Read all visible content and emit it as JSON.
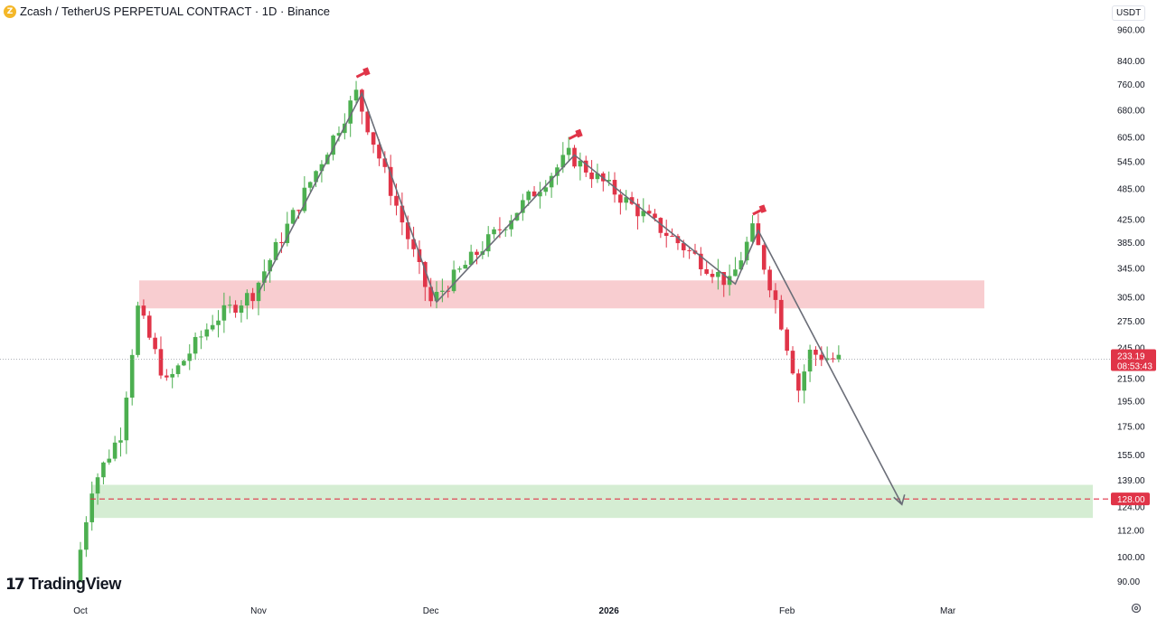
{
  "header": {
    "title": "Zcash / TetherUS PERPETUAL CONTRACT · 1D · Binance",
    "coin_icon": "zcash-coin-icon"
  },
  "currency": "USDT",
  "branding": {
    "logo_text": "TradingView",
    "logo_mark": "17"
  },
  "colors": {
    "up": "#26a69a",
    "candle_up": "#4caf50",
    "candle_down": "#e03448",
    "resistance_zone": "#f8cdd0",
    "support_zone": "#d5edd3",
    "line": "#6b6e78",
    "price_tag": "#e03448"
  },
  "chart_data": {
    "type": "candlestick",
    "y_axis": {
      "scale": "log",
      "labels": [
        "960.00",
        "840.00",
        "760.00",
        "680.00",
        "605.00",
        "545.00",
        "485.00",
        "425.00",
        "385.00",
        "345.00",
        "305.00",
        "275.00",
        "245.00",
        "215.00",
        "195.00",
        "175.00",
        "155.00",
        "139.00",
        "124.00",
        "112.00",
        "100.00",
        "90.00"
      ]
    },
    "x_axis": {
      "labels": [
        "Oct",
        "Nov",
        "Dec",
        "2026",
        "Feb",
        "Mar"
      ]
    },
    "current_price": {
      "value": "233.19",
      "countdown": "08:53:43"
    },
    "target_line": {
      "value": "128.00"
    },
    "zones": [
      {
        "name": "resistance-zone",
        "from": 290,
        "to": 327
      },
      {
        "name": "support-zone",
        "from": 118,
        "to": 136
      }
    ],
    "path_points": [
      {
        "date": "Nov 1",
        "value": 310
      },
      {
        "date": "Nov 19",
        "value": 730
      },
      {
        "date": "Dec 2",
        "value": 298
      },
      {
        "date": "Dec 26",
        "value": 560
      },
      {
        "date": "Jan 23",
        "value": 322
      },
      {
        "date": "Jan 27",
        "value": 405
      },
      {
        "date": "Feb 21",
        "value": 125
      }
    ],
    "pattern": "head-and-shoulders",
    "markers": [
      {
        "name": "left-shoulder-flag",
        "date": "Nov 19"
      },
      {
        "name": "head-flag",
        "date": "Dec 26"
      },
      {
        "name": "right-shoulder-flag",
        "date": "Jan 27"
      }
    ]
  }
}
